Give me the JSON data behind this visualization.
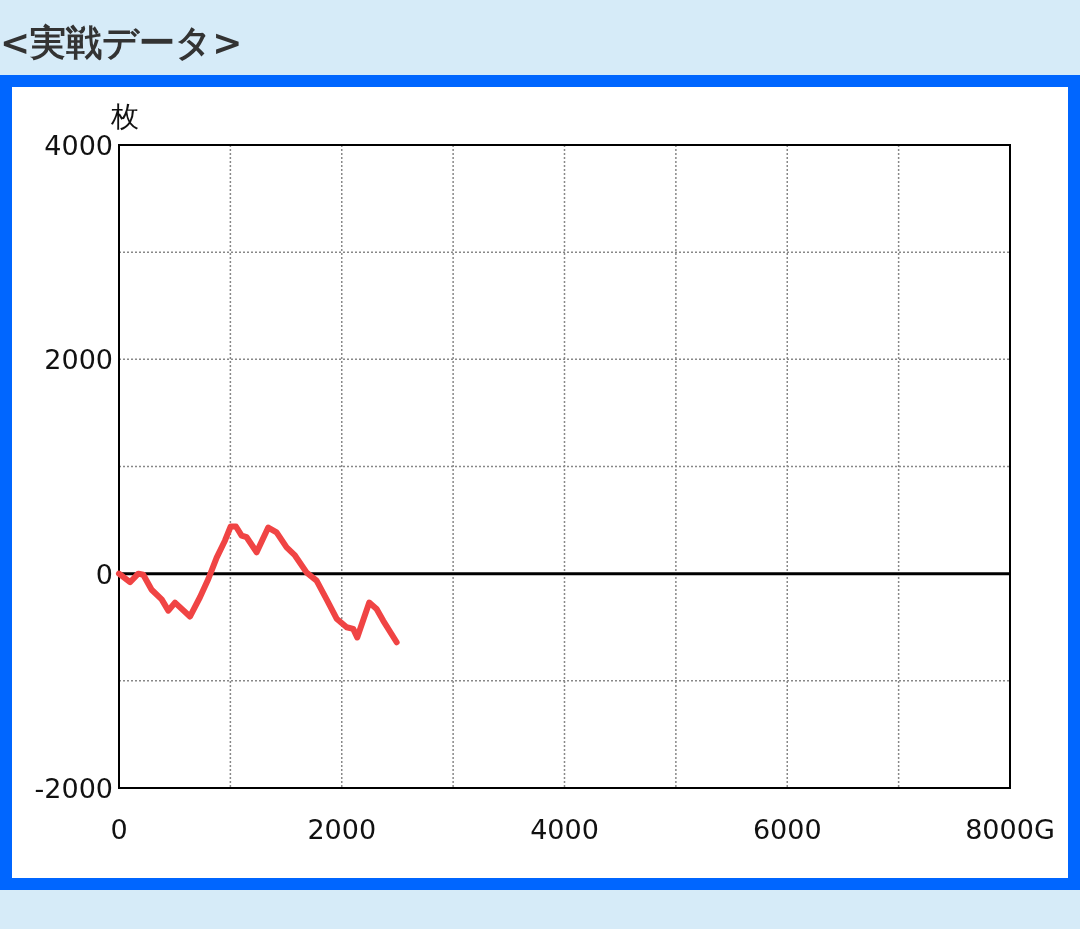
{
  "chart_data": {
    "type": "line",
    "title": "<実戦データ>",
    "ylabel": "枚",
    "x": [
      0,
      99,
      173,
      218,
      293,
      383,
      443,
      503,
      637,
      727,
      802,
      877,
      952,
      1002,
      1050,
      1101,
      1146,
      1236,
      1340,
      1415,
      1505,
      1580,
      1685,
      1774,
      1864,
      1954,
      2044,
      2103,
      2139,
      2247,
      2313,
      2373,
      2493
    ],
    "series": [
      {
        "color": "#f04444",
        "values": [
          0,
          -80,
          0,
          -10,
          -150,
          -240,
          -345,
          -270,
          -400,
          -220,
          -50,
          150,
          310,
          440,
          440,
          355,
          340,
          200,
          430,
          385,
          245,
          170,
          10,
          -65,
          -240,
          -420,
          -500,
          -515,
          -595,
          -270,
          -330,
          -440,
          -640
        ]
      }
    ],
    "xlim": [
      0,
      8000
    ],
    "ylim": [
      -2000,
      4000
    ],
    "xticks": [
      0,
      {
        "value": 1000,
        "label": null
      },
      2000,
      {
        "value": 3000,
        "label": null
      },
      4000,
      {
        "value": 5000,
        "label": null
      },
      6000,
      {
        "value": 7000,
        "label": null
      },
      {
        "value": 8000,
        "label": "8000G"
      }
    ],
    "yticks": [
      -2000,
      {
        "value": -1000,
        "label": null
      },
      0,
      {
        "value": 1000,
        "label": null
      },
      2000,
      {
        "value": 3000,
        "label": null
      },
      4000
    ],
    "grid": true,
    "ref_lines": [
      {
        "axis": "y",
        "value": 0,
        "color": "#000000"
      }
    ]
  }
}
